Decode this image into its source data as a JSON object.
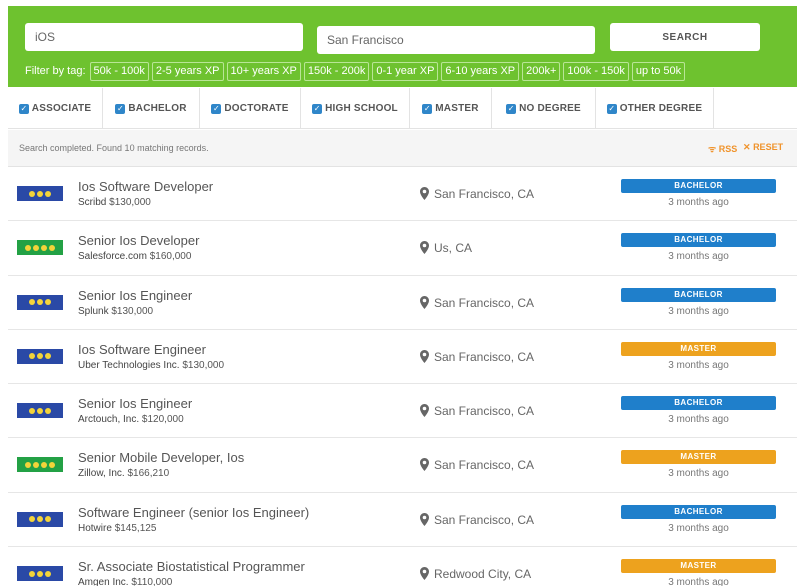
{
  "search": {
    "keyword_value": "iOS",
    "location_value": "San Francisco",
    "button_label": "SEARCH",
    "filter_label": "Filter by tag:",
    "tags": [
      "50k - 100k",
      "2-5 years XP",
      "10+ years XP",
      "150k - 200k",
      "0-1 year XP",
      "6-10 years XP",
      "200k+",
      "100k - 150k",
      "up to 50k"
    ]
  },
  "degrees": [
    {
      "label": "ASSOCIATE",
      "checked": true
    },
    {
      "label": "BACHELOR",
      "checked": true
    },
    {
      "label": "DOCTORATE",
      "checked": true
    },
    {
      "label": "HIGH SCHOOL",
      "checked": true
    },
    {
      "label": "MASTER",
      "checked": true
    },
    {
      "label": "NO DEGREE",
      "checked": true
    },
    {
      "label": "OTHER DEGREE",
      "checked": true
    }
  ],
  "status": {
    "text": "Search completed. Found 10 matching records.",
    "rss_label": "RSS",
    "reset_label": "RESET"
  },
  "colors": {
    "brand_green": "#6ec22f",
    "bachelor_badge": "#1f7fcb",
    "master_badge": "#eda21e",
    "logo_blue": "#2a49a6",
    "logo_green": "#23a145"
  },
  "jobs": [
    {
      "title": "Ios Software Developer",
      "company": "Scribd",
      "salary": "$130,000",
      "location": "San Francisco, CA",
      "degree": "BACHELOR",
      "posted": "3 months ago",
      "logo_color": "blue",
      "logo_dots": 3
    },
    {
      "title": "Senior Ios Developer",
      "company": "Salesforce.com",
      "salary": "$160,000",
      "location": "Us, CA",
      "degree": "BACHELOR",
      "posted": "3 months ago",
      "logo_color": "green",
      "logo_dots": 4
    },
    {
      "title": "Senior Ios Engineer",
      "company": "Splunk",
      "salary": "$130,000",
      "location": "San Francisco, CA",
      "degree": "BACHELOR",
      "posted": "3 months ago",
      "logo_color": "blue",
      "logo_dots": 3
    },
    {
      "title": "Ios Software Engineer",
      "company": "Uber Technologies Inc.",
      "salary": "$130,000",
      "location": "San Francisco, CA",
      "degree": "MASTER",
      "posted": "3 months ago",
      "logo_color": "blue",
      "logo_dots": 3
    },
    {
      "title": "Senior Ios Engineer",
      "company": "Arctouch, Inc.",
      "salary": "$120,000",
      "location": "San Francisco, CA",
      "degree": "BACHELOR",
      "posted": "3 months ago",
      "logo_color": "blue",
      "logo_dots": 3
    },
    {
      "title": "Senior Mobile Developer, Ios",
      "company": "Zillow, Inc.",
      "salary": "$166,210",
      "location": "San Francisco, CA",
      "degree": "MASTER",
      "posted": "3 months ago",
      "logo_color": "green",
      "logo_dots": 4
    },
    {
      "title": "Software Engineer (senior Ios Engineer)",
      "company": "Hotwire",
      "salary": "$145,125",
      "location": "San Francisco, CA",
      "degree": "BACHELOR",
      "posted": "3 months ago",
      "logo_color": "blue",
      "logo_dots": 3
    },
    {
      "title": "Sr. Associate Biostatistical Programmer",
      "company": "Amgen Inc.",
      "salary": "$110,000",
      "location": "Redwood City, CA",
      "degree": "MASTER",
      "posted": "3 months ago",
      "logo_color": "blue",
      "logo_dots": 3
    }
  ]
}
